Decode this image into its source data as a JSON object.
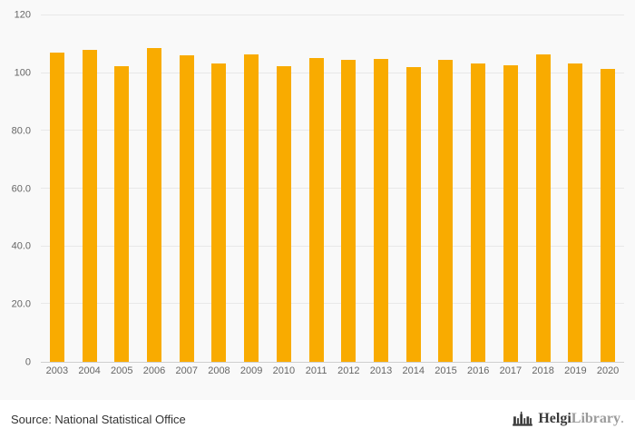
{
  "chart_data": {
    "type": "bar",
    "title": "",
    "categories": [
      "2003",
      "2004",
      "2005",
      "2006",
      "2007",
      "2008",
      "2009",
      "2010",
      "2011",
      "2012",
      "2013",
      "2014",
      "2015",
      "2016",
      "2017",
      "2018",
      "2019",
      "2020"
    ],
    "values": [
      107.0,
      108.2,
      102.3,
      108.8,
      106.1,
      103.3,
      106.4,
      102.5,
      105.1,
      104.7,
      105.0,
      102.1,
      104.6,
      103.2,
      102.7,
      106.6,
      103.5,
      101.5
    ],
    "xlabel": "",
    "ylabel": "",
    "ylim": [
      0,
      120
    ],
    "grid": true,
    "legend": "none",
    "bar_color": "#F9AB00",
    "yticks": [
      {
        "value": 120,
        "label": "120"
      },
      {
        "value": 100,
        "label": "100"
      },
      {
        "value": 80,
        "label": "80.0"
      },
      {
        "value": 60,
        "label": "60.0"
      },
      {
        "value": 40,
        "label": "40.0"
      },
      {
        "value": 20,
        "label": "20.0"
      },
      {
        "value": 0,
        "label": "0"
      }
    ]
  },
  "footer": {
    "source_label": "Source: National Statistical Office",
    "brand": {
      "name_primary": "Helgi",
      "name_secondary": "Library",
      "suffix": "."
    }
  }
}
